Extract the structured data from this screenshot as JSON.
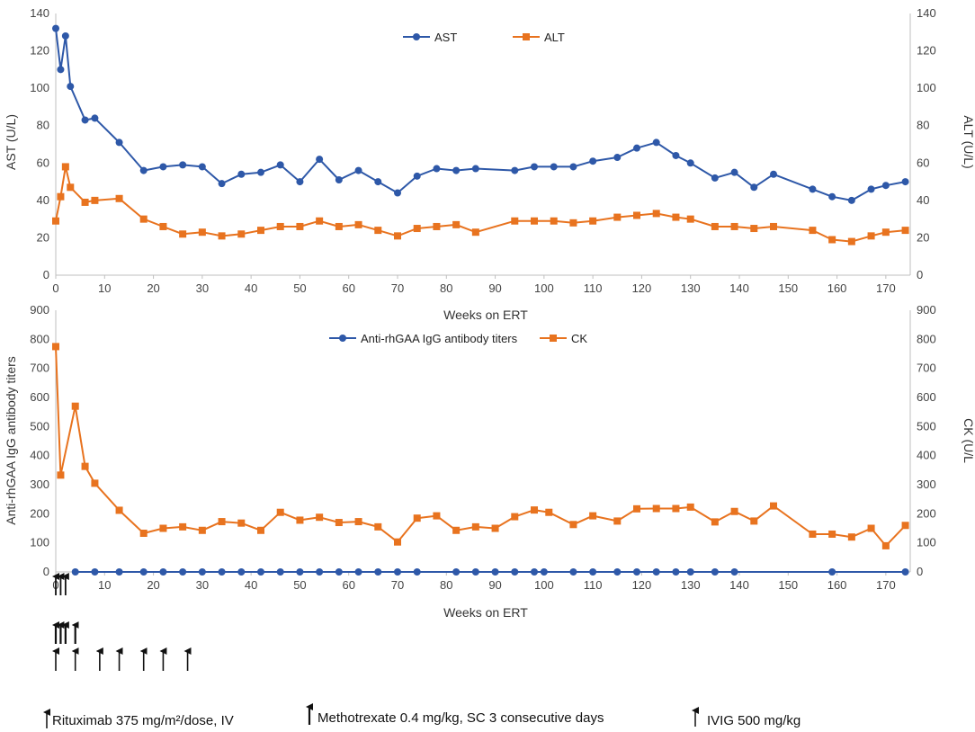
{
  "colors": {
    "ast": "#2E58A8",
    "alt": "#E8731F",
    "titers": "#2E58A8",
    "ck": "#E8731F",
    "axis": "#BFBFBF",
    "text": "#333333"
  },
  "chart_data": [
    {
      "type": "line",
      "xlabel": "Weeks on ERT",
      "ylabel": "AST (U/L)",
      "ylabel_right": "ALT (U/L)",
      "xlim": [
        0,
        175
      ],
      "ylim": [
        0,
        140
      ],
      "x_ticks": [
        "0",
        "10",
        "20",
        "30",
        "40",
        "50",
        "60",
        "70",
        "80",
        "90",
        "100",
        "110",
        "120",
        "130",
        "140",
        "150",
        "160",
        "170"
      ],
      "y_ticks": [
        "0",
        "20",
        "40",
        "60",
        "80",
        "100",
        "120",
        "140"
      ],
      "legend": "top-center",
      "grid": false,
      "series": [
        {
          "name": "AST",
          "marker": "circle",
          "x": [
            0,
            1,
            2,
            3,
            6,
            8,
            13,
            18,
            22,
            26,
            30,
            34,
            38,
            42,
            46,
            50,
            54,
            58,
            62,
            66,
            70,
            74,
            78,
            82,
            86,
            94,
            98,
            102,
            106,
            110,
            115,
            119,
            123,
            127,
            130,
            135,
            139,
            143,
            147,
            155,
            159,
            163,
            167,
            170,
            174
          ],
          "values": [
            132,
            110,
            128,
            101,
            83,
            84,
            71,
            56,
            58,
            59,
            58,
            49,
            54,
            55,
            59,
            50,
            62,
            51,
            56,
            50,
            44,
            53,
            57,
            56,
            57,
            56,
            58,
            58,
            58,
            61,
            63,
            68,
            71,
            64,
            60,
            52,
            55,
            47,
            54,
            46,
            42,
            40,
            46,
            48,
            50
          ]
        },
        {
          "name": "ALT",
          "marker": "square",
          "x": [
            0,
            1,
            2,
            3,
            6,
            8,
            13,
            18,
            22,
            26,
            30,
            34,
            38,
            42,
            46,
            50,
            54,
            58,
            62,
            66,
            70,
            74,
            78,
            82,
            86,
            94,
            98,
            102,
            106,
            110,
            115,
            119,
            123,
            127,
            130,
            135,
            139,
            143,
            147,
            155,
            159,
            163,
            167,
            170,
            174
          ],
          "values": [
            29,
            42,
            58,
            47,
            39,
            40,
            41,
            30,
            26,
            22,
            23,
            21,
            22,
            24,
            26,
            26,
            29,
            26,
            27,
            24,
            21,
            25,
            26,
            27,
            23,
            29,
            29,
            29,
            28,
            29,
            31,
            32,
            33,
            31,
            30,
            26,
            26,
            25,
            26,
            24,
            19,
            18,
            21,
            23,
            24
          ]
        }
      ]
    },
    {
      "type": "line",
      "xlabel": "Weeks on ERT",
      "ylabel": "Anti-rhGAA IgG antibody titers",
      "ylabel_right": "CK (U/L",
      "xlim": [
        0,
        175
      ],
      "ylim": [
        0,
        900
      ],
      "x_ticks": [
        "0",
        "10",
        "20",
        "30",
        "40",
        "50",
        "60",
        "70",
        "80",
        "90",
        "100",
        "110",
        "120",
        "130",
        "140",
        "150",
        "160",
        "170"
      ],
      "y_ticks": [
        "0",
        "100",
        "200",
        "300",
        "400",
        "500",
        "600",
        "700",
        "800",
        "900"
      ],
      "legend": "top-center",
      "grid": false,
      "series": [
        {
          "name": "Anti-rhGAA IgG antibody titers",
          "marker": "circle",
          "x": [
            4,
            8,
            13,
            18,
            22,
            26,
            30,
            34,
            38,
            42,
            46,
            50,
            54,
            58,
            62,
            66,
            70,
            74,
            82,
            86,
            90,
            94,
            98,
            100,
            106,
            110,
            115,
            119,
            123,
            127,
            130,
            135,
            139,
            159,
            174
          ],
          "values": [
            0,
            0,
            0,
            0,
            0,
            0,
            0,
            0,
            0,
            0,
            0,
            0,
            0,
            0,
            0,
            0,
            0,
            0,
            0,
            0,
            0,
            0,
            0,
            0,
            0,
            0,
            0,
            0,
            0,
            0,
            0,
            0,
            0,
            0,
            0
          ]
        },
        {
          "name": "CK",
          "marker": "square",
          "x": [
            0,
            1,
            4,
            6,
            8,
            13,
            18,
            22,
            26,
            30,
            34,
            38,
            42,
            46,
            50,
            54,
            58,
            62,
            66,
            70,
            74,
            78,
            82,
            86,
            90,
            94,
            98,
            101,
            106,
            110,
            115,
            119,
            123,
            127,
            130,
            135,
            139,
            143,
            147,
            155,
            159,
            163,
            167,
            170,
            174
          ],
          "values": [
            775,
            333,
            570,
            363,
            305,
            212,
            133,
            150,
            155,
            143,
            173,
            168,
            143,
            205,
            178,
            188,
            170,
            173,
            155,
            103,
            185,
            193,
            143,
            155,
            150,
            190,
            213,
            205,
            163,
            193,
            175,
            217,
            218,
            218,
            223,
            172,
            208,
            175,
            227,
            130,
            130,
            120,
            150,
            90,
            160
          ]
        }
      ]
    }
  ],
  "treatment_arrows": {
    "rituximab_weeks": [
      0,
      1,
      2
    ],
    "methotrexate_weeks": [
      4
    ],
    "ivig_weeks": [
      0,
      4,
      9,
      13,
      18,
      22,
      27
    ]
  },
  "footnotes": {
    "rituximab": "Rituximab 375 mg/m²/dose, IV",
    "methotrexate": "Methotrexate 0.4 mg/kg, SC 3 consecutive days",
    "ivig": "IVIG 500 mg/kg"
  }
}
